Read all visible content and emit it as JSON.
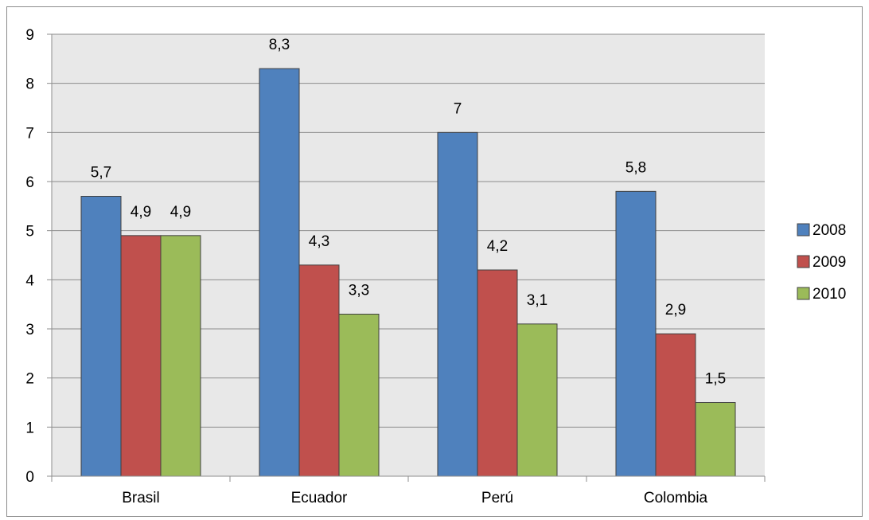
{
  "chart_data": {
    "type": "bar",
    "categories": [
      "Brasil",
      "Ecuador",
      "Perú",
      "Colombia"
    ],
    "series": [
      {
        "name": "2008",
        "color": "#4f81bd",
        "values": [
          5.7,
          8.3,
          7,
          5.8
        ],
        "labels": [
          "5,7",
          "8,3",
          "7",
          "5,8"
        ]
      },
      {
        "name": "2009",
        "color": "#c0504d",
        "values": [
          4.9,
          4.3,
          4.2,
          2.9
        ],
        "labels": [
          "4,9",
          "4,3",
          "4,2",
          "2,9"
        ]
      },
      {
        "name": "2010",
        "color": "#9bbb59",
        "values": [
          4.9,
          3.3,
          3.1,
          1.5
        ],
        "labels": [
          "4,9",
          "3,3",
          "3,1",
          "1,5"
        ]
      }
    ],
    "ylim": [
      0,
      9
    ],
    "yticks": [
      0,
      1,
      2,
      3,
      4,
      5,
      6,
      7,
      8,
      9
    ],
    "grid": true,
    "plot_background": "#e8e8e8",
    "legend_position": "right"
  }
}
